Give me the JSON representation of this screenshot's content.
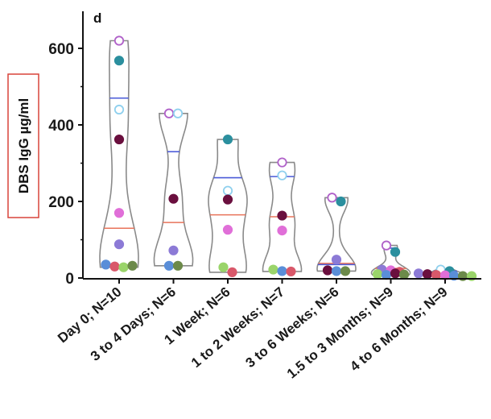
{
  "chart_data": {
    "type": "violin",
    "panel_label": "d",
    "ylabel": "DBS IgG µg/ml",
    "ylim": [
      0,
      650
    ],
    "yticks": [
      0,
      200,
      400,
      600
    ],
    "categories": [
      "Day 0; N=10",
      "3 to 4 Days; N=6",
      "1 Week; N=6",
      "1 to 2 Weeks; N=7",
      "3 to 6 Weeks; N=6",
      "1.5 to 3 Months; N=9",
      "4 to 6 Months; N=9"
    ],
    "groups": [
      {
        "median": 130,
        "mean": 470,
        "points": [
          {
            "value": 620,
            "color": "#b061c9",
            "filled": false
          },
          {
            "value": 568,
            "color": "#2b8f9e",
            "filled": true
          },
          {
            "value": 440,
            "color": "#8fd0ee",
            "filled": false
          },
          {
            "value": 362,
            "color": "#6a0f3e",
            "filled": true
          },
          {
            "value": 170,
            "color": "#e06fd8",
            "filled": true
          },
          {
            "value": 88,
            "color": "#8c7ad6",
            "filled": true
          },
          {
            "value": 35,
            "color": "#5a8ed8",
            "filled": true
          },
          {
            "value": 30,
            "color": "#d9586a",
            "filled": true
          },
          {
            "value": 28,
            "color": "#9ad46a",
            "filled": true
          },
          {
            "value": 32,
            "color": "#6c8a4a",
            "filled": true
          }
        ]
      },
      {
        "median": 145,
        "mean": 330,
        "points": [
          {
            "value": 430,
            "color": "#b061c9",
            "filled": false
          },
          {
            "value": 430,
            "color": "#8fd0ee",
            "filled": false
          },
          {
            "value": 207,
            "color": "#6a0f3e",
            "filled": true
          },
          {
            "value": 72,
            "color": "#8c7ad6",
            "filled": true
          },
          {
            "value": 32,
            "color": "#5a8ed8",
            "filled": true
          },
          {
            "value": 32,
            "color": "#6c8a4a",
            "filled": true
          }
        ]
      },
      {
        "median": 165,
        "mean": 262,
        "points": [
          {
            "value": 362,
            "color": "#2b8f9e",
            "filled": true
          },
          {
            "value": 228,
            "color": "#8fd0ee",
            "filled": false
          },
          {
            "value": 205,
            "color": "#6a0f3e",
            "filled": true
          },
          {
            "value": 126,
            "color": "#e06fd8",
            "filled": true
          },
          {
            "value": 28,
            "color": "#9ad46a",
            "filled": true
          },
          {
            "value": 15,
            "color": "#d9586a",
            "filled": true
          }
        ]
      },
      {
        "median": 160,
        "mean": 265,
        "points": [
          {
            "value": 302,
            "color": "#b061c9",
            "filled": false
          },
          {
            "value": 268,
            "color": "#8fd0ee",
            "filled": false
          },
          {
            "value": 163,
            "color": "#6a0f3e",
            "filled": true
          },
          {
            "value": 124,
            "color": "#e06fd8",
            "filled": true
          },
          {
            "value": 22,
            "color": "#9ad46a",
            "filled": true
          },
          {
            "value": 18,
            "color": "#5a8ed8",
            "filled": true
          },
          {
            "value": 17,
            "color": "#d9586a",
            "filled": true
          }
        ]
      },
      {
        "median": 38,
        "mean": 35,
        "points": [
          {
            "value": 210,
            "color": "#b061c9",
            "filled": false
          },
          {
            "value": 200,
            "color": "#2b8f9e",
            "filled": true
          },
          {
            "value": 48,
            "color": "#8c7ad6",
            "filled": true
          },
          {
            "value": 20,
            "color": "#6a0f3e",
            "filled": true
          },
          {
            "value": 18,
            "color": "#5a8ed8",
            "filled": true
          },
          {
            "value": 18,
            "color": "#6c8a4a",
            "filled": true
          }
        ]
      },
      {
        "median": 25,
        "mean": 78,
        "points": [
          {
            "value": 85,
            "color": "#b061c9",
            "filled": false
          },
          {
            "value": 68,
            "color": "#2b8f9e",
            "filled": true
          },
          {
            "value": 22,
            "color": "#8c7ad6",
            "filled": true
          },
          {
            "value": 20,
            "color": "#e06fd8",
            "filled": true
          },
          {
            "value": 16,
            "color": "#d9586a",
            "filled": true
          },
          {
            "value": 10,
            "color": "#9ad46a",
            "filled": true
          },
          {
            "value": 8,
            "color": "#5a8ed8",
            "filled": true
          },
          {
            "value": 12,
            "color": "#6a0f3e",
            "filled": true
          },
          {
            "value": 9,
            "color": "#6c8a4a",
            "filled": true
          }
        ]
      },
      {
        "median": 10,
        "mean": 18,
        "points": [
          {
            "value": 22,
            "color": "#8fd0ee",
            "filled": false
          },
          {
            "value": 18,
            "color": "#2b8f9e",
            "filled": true
          },
          {
            "value": 12,
            "color": "#8c7ad6",
            "filled": true
          },
          {
            "value": 10,
            "color": "#6a0f3e",
            "filled": true
          },
          {
            "value": 8,
            "color": "#d9586a",
            "filled": true
          },
          {
            "value": 7,
            "color": "#e06fd8",
            "filled": true
          },
          {
            "value": 6,
            "color": "#5a8ed8",
            "filled": true
          },
          {
            "value": 5,
            "color": "#6c8a4a",
            "filled": true
          },
          {
            "value": 5,
            "color": "#9ad46a",
            "filled": true
          }
        ]
      }
    ],
    "colors": {
      "violin_outline": "#8a8a8a",
      "median_line": "#e8735a",
      "mean_line": "#4a5ad8",
      "axis": "#111111",
      "ylabel_box": "#d9443a"
    },
    "grid": false,
    "legend": "none"
  }
}
